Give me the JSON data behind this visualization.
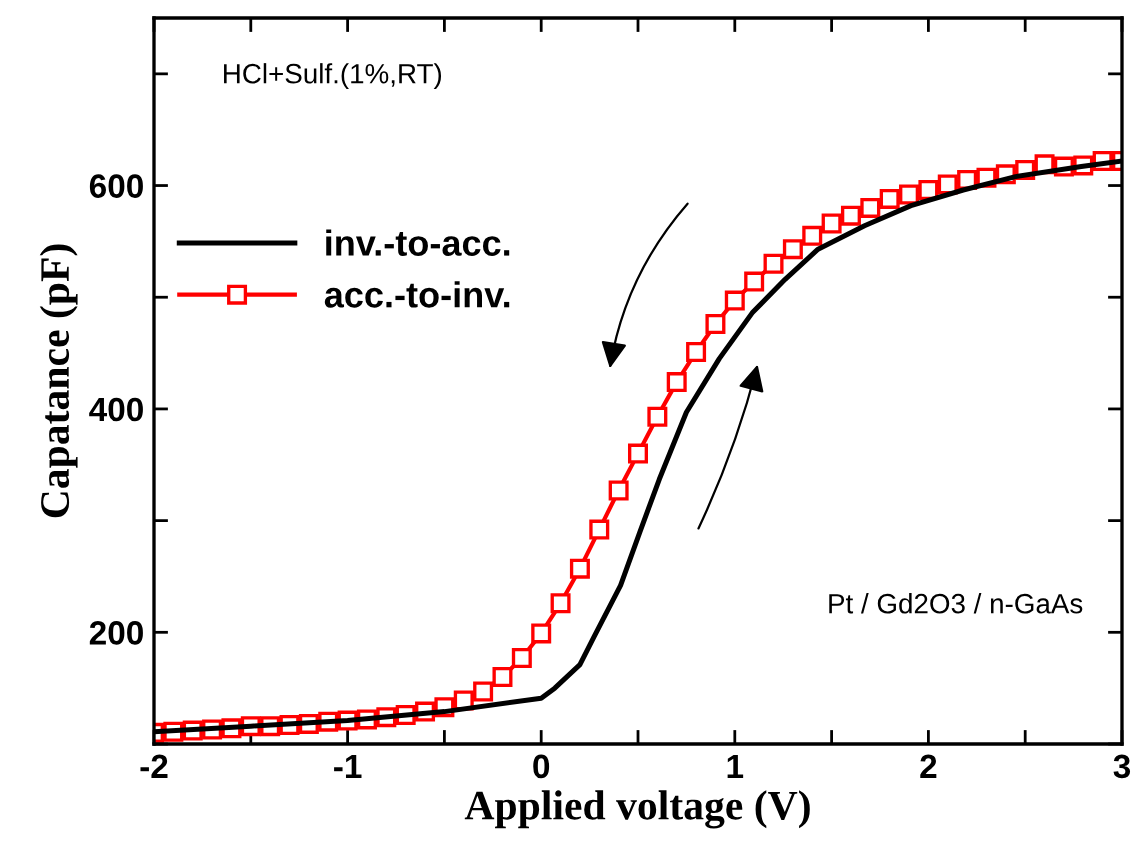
{
  "chart_data": {
    "type": "line",
    "xlabel": "Applied voltage (V)",
    "ylabel": "Capatance (pF)",
    "xlim": [
      -2,
      3
    ],
    "ylim": [
      100,
      750
    ],
    "xticks": [
      -2,
      {
        "value": -1.5,
        "label": null
      },
      -1,
      {
        "value": -0.5,
        "label": null
      },
      0,
      {
        "value": 0.5,
        "label": null
      },
      1,
      {
        "value": 1.5,
        "label": null
      },
      2,
      {
        "value": 2.5,
        "label": null
      },
      3
    ],
    "yticks": [
      {
        "value": 100,
        "label": null
      },
      200,
      {
        "value": 300,
        "label": null
      },
      400,
      {
        "value": 500,
        "label": null
      },
      600,
      {
        "value": 700,
        "label": null
      }
    ],
    "grid": false,
    "legend": "left",
    "annotations": [
      "HCl+Sulf.(1%,RT)",
      "Pt / Gd2O3 / n-GaAs"
    ],
    "series": [
      {
        "name": "inv.-to-acc.",
        "color": "#000000",
        "marker": "none",
        "x": [
          -2,
          -1.5,
          -1,
          -0.5,
          0,
          0.07,
          0.2,
          0.27,
          0.41,
          0.51,
          0.61,
          0.75,
          0.92,
          1.09,
          1.26,
          1.43,
          1.67,
          1.91,
          2.18,
          2.45,
          2.79,
          3
        ],
        "values": [
          111,
          116,
          121,
          129,
          141,
          150,
          171,
          195,
          242,
          290,
          337,
          397,
          445,
          486,
          516,
          543,
          564,
          582,
          596,
          608,
          617,
          622
        ]
      },
      {
        "name": "acc.-to-inv.",
        "color": "#ff0000",
        "marker": "square",
        "x": [
          -2,
          -1.9,
          -1.8,
          -1.7,
          -1.6,
          -1.5,
          -1.4,
          -1.3,
          -1.2,
          -1.1,
          -1,
          -0.9,
          -0.8,
          -0.7,
          -0.6,
          -0.5,
          -0.4,
          -0.3,
          -0.2,
          -0.1,
          0,
          0.1,
          0.2,
          0.3,
          0.4,
          0.5,
          0.6,
          0.7,
          0.8,
          0.9,
          1,
          1.1,
          1.2,
          1.3,
          1.4,
          1.5,
          1.6,
          1.7,
          1.8,
          1.9,
          2,
          2.1,
          2.2,
          2.3,
          2.4,
          2.5,
          2.6,
          2.7,
          2.8,
          2.9,
          3
        ],
        "values": [
          110,
          111,
          112,
          113,
          114,
          116,
          116,
          117,
          118,
          120,
          121,
          122,
          124,
          126,
          129,
          133,
          139,
          147,
          160,
          177,
          199,
          226,
          257,
          292,
          327,
          360,
          393,
          424,
          451,
          476,
          497,
          514,
          530,
          543,
          555,
          566,
          573,
          580,
          588,
          592,
          596,
          601,
          605,
          607,
          610,
          614,
          619,
          617,
          618,
          622,
          622
        ]
      }
    ]
  }
}
